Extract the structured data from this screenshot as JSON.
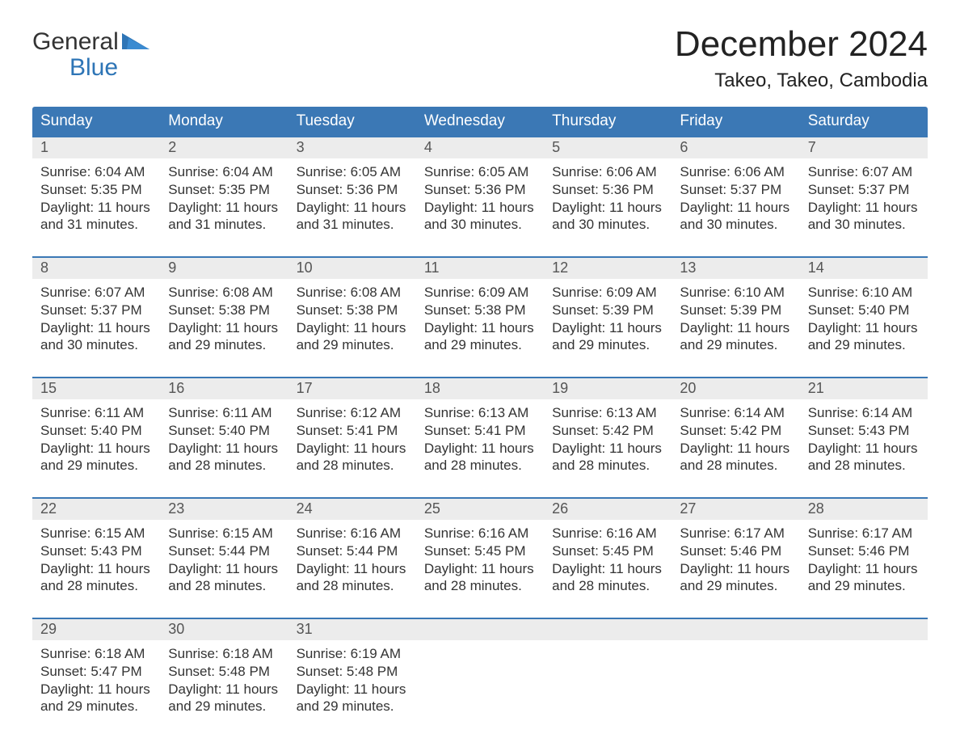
{
  "logo": {
    "word1": "General",
    "word2": "Blue",
    "accent_color": "#2e75b6"
  },
  "title": "December 2024",
  "location": "Takeo, Takeo, Cambodia",
  "colors": {
    "header_bg": "#3b78b5",
    "header_text": "#ffffff",
    "week_divider": "#3b78b5",
    "daynum_bg": "#ececec",
    "text": "#333333",
    "background": "#ffffff"
  },
  "layout": {
    "columns": 7,
    "font_family": "Arial"
  },
  "day_labels": [
    "Sunday",
    "Monday",
    "Tuesday",
    "Wednesday",
    "Thursday",
    "Friday",
    "Saturday"
  ],
  "weeks": [
    [
      {
        "n": "1",
        "sunrise": "6:04 AM",
        "sunset": "5:35 PM",
        "daylight": "11 hours and 31 minutes."
      },
      {
        "n": "2",
        "sunrise": "6:04 AM",
        "sunset": "5:35 PM",
        "daylight": "11 hours and 31 minutes."
      },
      {
        "n": "3",
        "sunrise": "6:05 AM",
        "sunset": "5:36 PM",
        "daylight": "11 hours and 31 minutes."
      },
      {
        "n": "4",
        "sunrise": "6:05 AM",
        "sunset": "5:36 PM",
        "daylight": "11 hours and 30 minutes."
      },
      {
        "n": "5",
        "sunrise": "6:06 AM",
        "sunset": "5:36 PM",
        "daylight": "11 hours and 30 minutes."
      },
      {
        "n": "6",
        "sunrise": "6:06 AM",
        "sunset": "5:37 PM",
        "daylight": "11 hours and 30 minutes."
      },
      {
        "n": "7",
        "sunrise": "6:07 AM",
        "sunset": "5:37 PM",
        "daylight": "11 hours and 30 minutes."
      }
    ],
    [
      {
        "n": "8",
        "sunrise": "6:07 AM",
        "sunset": "5:37 PM",
        "daylight": "11 hours and 30 minutes."
      },
      {
        "n": "9",
        "sunrise": "6:08 AM",
        "sunset": "5:38 PM",
        "daylight": "11 hours and 29 minutes."
      },
      {
        "n": "10",
        "sunrise": "6:08 AM",
        "sunset": "5:38 PM",
        "daylight": "11 hours and 29 minutes."
      },
      {
        "n": "11",
        "sunrise": "6:09 AM",
        "sunset": "5:38 PM",
        "daylight": "11 hours and 29 minutes."
      },
      {
        "n": "12",
        "sunrise": "6:09 AM",
        "sunset": "5:39 PM",
        "daylight": "11 hours and 29 minutes."
      },
      {
        "n": "13",
        "sunrise": "6:10 AM",
        "sunset": "5:39 PM",
        "daylight": "11 hours and 29 minutes."
      },
      {
        "n": "14",
        "sunrise": "6:10 AM",
        "sunset": "5:40 PM",
        "daylight": "11 hours and 29 minutes."
      }
    ],
    [
      {
        "n": "15",
        "sunrise": "6:11 AM",
        "sunset": "5:40 PM",
        "daylight": "11 hours and 29 minutes."
      },
      {
        "n": "16",
        "sunrise": "6:11 AM",
        "sunset": "5:40 PM",
        "daylight": "11 hours and 28 minutes."
      },
      {
        "n": "17",
        "sunrise": "6:12 AM",
        "sunset": "5:41 PM",
        "daylight": "11 hours and 28 minutes."
      },
      {
        "n": "18",
        "sunrise": "6:13 AM",
        "sunset": "5:41 PM",
        "daylight": "11 hours and 28 minutes."
      },
      {
        "n": "19",
        "sunrise": "6:13 AM",
        "sunset": "5:42 PM",
        "daylight": "11 hours and 28 minutes."
      },
      {
        "n": "20",
        "sunrise": "6:14 AM",
        "sunset": "5:42 PM",
        "daylight": "11 hours and 28 minutes."
      },
      {
        "n": "21",
        "sunrise": "6:14 AM",
        "sunset": "5:43 PM",
        "daylight": "11 hours and 28 minutes."
      }
    ],
    [
      {
        "n": "22",
        "sunrise": "6:15 AM",
        "sunset": "5:43 PM",
        "daylight": "11 hours and 28 minutes."
      },
      {
        "n": "23",
        "sunrise": "6:15 AM",
        "sunset": "5:44 PM",
        "daylight": "11 hours and 28 minutes."
      },
      {
        "n": "24",
        "sunrise": "6:16 AM",
        "sunset": "5:44 PM",
        "daylight": "11 hours and 28 minutes."
      },
      {
        "n": "25",
        "sunrise": "6:16 AM",
        "sunset": "5:45 PM",
        "daylight": "11 hours and 28 minutes."
      },
      {
        "n": "26",
        "sunrise": "6:16 AM",
        "sunset": "5:45 PM",
        "daylight": "11 hours and 28 minutes."
      },
      {
        "n": "27",
        "sunrise": "6:17 AM",
        "sunset": "5:46 PM",
        "daylight": "11 hours and 29 minutes."
      },
      {
        "n": "28",
        "sunrise": "6:17 AM",
        "sunset": "5:46 PM",
        "daylight": "11 hours and 29 minutes."
      }
    ],
    [
      {
        "n": "29",
        "sunrise": "6:18 AM",
        "sunset": "5:47 PM",
        "daylight": "11 hours and 29 minutes."
      },
      {
        "n": "30",
        "sunrise": "6:18 AM",
        "sunset": "5:48 PM",
        "daylight": "11 hours and 29 minutes."
      },
      {
        "n": "31",
        "sunrise": "6:19 AM",
        "sunset": "5:48 PM",
        "daylight": "11 hours and 29 minutes."
      },
      null,
      null,
      null,
      null
    ]
  ],
  "labels": {
    "sunrise": "Sunrise:",
    "sunset": "Sunset:",
    "daylight": "Daylight:"
  }
}
